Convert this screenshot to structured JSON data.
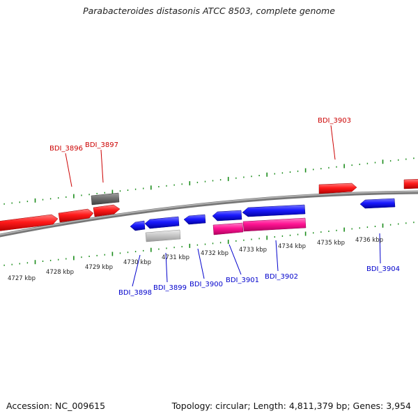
{
  "title": "Parabacteroides distasonis ATCC 8503, complete genome",
  "footer": {
    "accession": "Accession: NC_009615",
    "summary": "Topology: circular; Length: 4,811,379 bp; Genes: 3,954"
  },
  "colors": {
    "forward": "#ff1a1a",
    "reverse": "#1a1aff",
    "rna": "#ff1493",
    "pseudo_dark": "#777777",
    "pseudo_light": "#c8c8c8",
    "forward_label": "#cc0000",
    "reverse_label": "#0000cc",
    "tick": "#1a8c1a",
    "backbone": "#888888"
  },
  "kbp_labels": [
    {
      "id": "4727",
      "text": "4727 kbp"
    },
    {
      "id": "4728",
      "text": "4728 kbp"
    },
    {
      "id": "4729",
      "text": "4729 kbp"
    },
    {
      "id": "4730",
      "text": "4730 kbp"
    },
    {
      "id": "4731",
      "text": "4731 kbp"
    },
    {
      "id": "4732",
      "text": "4732 kbp"
    },
    {
      "id": "4733",
      "text": "4733 kbp"
    },
    {
      "id": "4734",
      "text": "4734 kbp"
    },
    {
      "id": "4735",
      "text": "4735 kbp"
    },
    {
      "id": "4736",
      "text": "4736 kbp"
    }
  ],
  "gene_labels": [
    {
      "id": "BDI_3896",
      "text": "BDI_3896",
      "strand": "forward"
    },
    {
      "id": "BDI_3897",
      "text": "BDI_3897",
      "strand": "forward"
    },
    {
      "id": "BDI_3903",
      "text": "BDI_3903",
      "strand": "forward"
    },
    {
      "id": "BDI_3898",
      "text": "BDI_3898",
      "strand": "reverse"
    },
    {
      "id": "BDI_3899",
      "text": "BDI_3899",
      "strand": "reverse"
    },
    {
      "id": "BDI_3900",
      "text": "BDI_3900",
      "strand": "reverse"
    },
    {
      "id": "BDI_3901",
      "text": "BDI_3901",
      "strand": "reverse"
    },
    {
      "id": "BDI_3902",
      "text": "BDI_3902",
      "strand": "reverse"
    },
    {
      "id": "BDI_3904",
      "text": "BDI_3904",
      "strand": "reverse"
    }
  ]
}
